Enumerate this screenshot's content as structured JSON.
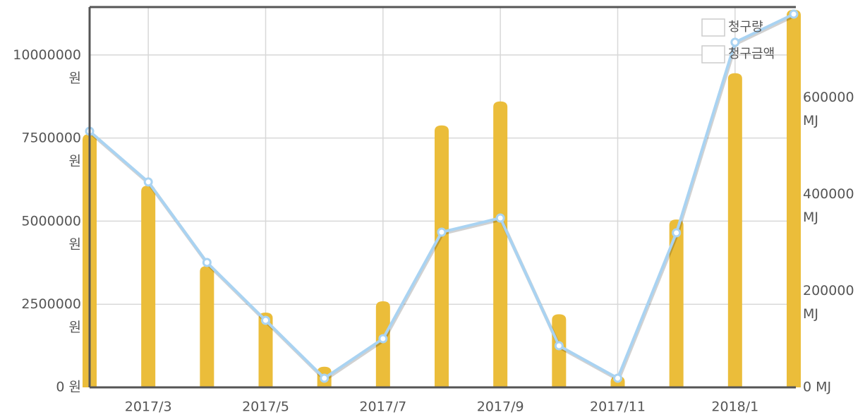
{
  "chart_data": {
    "type": "bar-line",
    "categories": [
      null,
      "2017/3",
      null,
      "2017/5",
      null,
      "2017/7",
      null,
      "2017/9",
      null,
      "2017/11",
      null,
      "2018/1",
      null
    ],
    "series": [
      {
        "name": "청구량",
        "type": "line",
        "axis": "y2",
        "color": "#a9d3f2",
        "values": [
          530000,
          425000,
          258400,
          138700,
          19000,
          100700,
          321200,
          350400,
          86100,
          19000,
          319700,
          714000,
          772300
        ]
      },
      {
        "name": "청구금액",
        "type": "bar",
        "axis": "y",
        "color": "#ebbd3a",
        "values": [
          7620000,
          6070000,
          3650000,
          2250000,
          620000,
          2590000,
          7880000,
          8600000,
          2200000,
          340000,
          5050000,
          9450000,
          11360000
        ]
      }
    ],
    "ylim": [
      0,
      11440000
    ],
    "yticks": [
      {
        "value": 0,
        "label": "0 원"
      },
      {
        "value": 2500000,
        "label": "2500000 원"
      },
      {
        "value": 5000000,
        "label": "5000000 원"
      },
      {
        "value": 7500000,
        "label": "7500000 원"
      },
      {
        "value": 10000000,
        "label": "10000000 원"
      }
    ],
    "y2lim": [
      0,
      786900
    ],
    "y2ticks": [
      {
        "value": 0,
        "label": "0 MJ"
      },
      {
        "value": 200000,
        "label": "200000 MJ"
      },
      {
        "value": 400000,
        "label": "400000 MJ"
      },
      {
        "value": 600000,
        "label": "600000 MJ"
      }
    ],
    "grid": true,
    "legend": "top-right"
  }
}
